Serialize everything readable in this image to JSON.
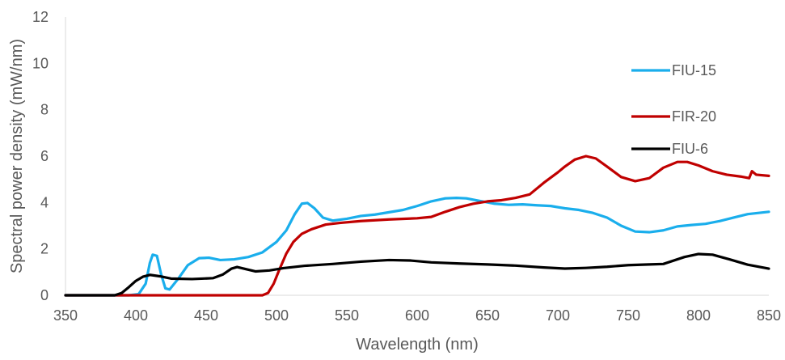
{
  "chart_data": {
    "type": "line",
    "title": "",
    "xlabel": "Wavelength (nm)",
    "ylabel": "Spectral power density (mW/nm)",
    "xlim": [
      350,
      850
    ],
    "ylim": [
      0,
      12
    ],
    "x_ticks": [
      "350",
      "400",
      "450",
      "500",
      "550",
      "600",
      "650",
      "700",
      "750",
      "800",
      "850"
    ],
    "y_ticks": [
      "0",
      "2",
      "4",
      "6",
      "8",
      "10",
      "12"
    ],
    "grid": false,
    "legend_position": "right",
    "series": [
      {
        "name": "FIU-15",
        "color": "#1aaeec",
        "points": [
          [
            350,
            0
          ],
          [
            395,
            0
          ],
          [
            402,
            0.05
          ],
          [
            407,
            0.5
          ],
          [
            410,
            1.4
          ],
          [
            412,
            1.75
          ],
          [
            415,
            1.7
          ],
          [
            418,
            0.9
          ],
          [
            421,
            0.3
          ],
          [
            424,
            0.25
          ],
          [
            430,
            0.7
          ],
          [
            437,
            1.3
          ],
          [
            445,
            1.6
          ],
          [
            452,
            1.62
          ],
          [
            460,
            1.52
          ],
          [
            470,
            1.55
          ],
          [
            480,
            1.65
          ],
          [
            490,
            1.85
          ],
          [
            500,
            2.3
          ],
          [
            507,
            2.8
          ],
          [
            513,
            3.5
          ],
          [
            518,
            3.95
          ],
          [
            522,
            3.98
          ],
          [
            527,
            3.75
          ],
          [
            533,
            3.35
          ],
          [
            540,
            3.22
          ],
          [
            550,
            3.3
          ],
          [
            560,
            3.42
          ],
          [
            570,
            3.48
          ],
          [
            580,
            3.58
          ],
          [
            590,
            3.68
          ],
          [
            600,
            3.85
          ],
          [
            610,
            4.05
          ],
          [
            620,
            4.18
          ],
          [
            628,
            4.2
          ],
          [
            635,
            4.18
          ],
          [
            645,
            4.06
          ],
          [
            655,
            3.95
          ],
          [
            665,
            3.9
          ],
          [
            675,
            3.92
          ],
          [
            685,
            3.88
          ],
          [
            695,
            3.85
          ],
          [
            705,
            3.75
          ],
          [
            715,
            3.68
          ],
          [
            725,
            3.55
          ],
          [
            735,
            3.35
          ],
          [
            745,
            3.0
          ],
          [
            755,
            2.75
          ],
          [
            765,
            2.72
          ],
          [
            775,
            2.8
          ],
          [
            785,
            2.97
          ],
          [
            795,
            3.03
          ],
          [
            805,
            3.08
          ],
          [
            815,
            3.2
          ],
          [
            825,
            3.35
          ],
          [
            835,
            3.5
          ],
          [
            850,
            3.6
          ]
        ]
      },
      {
        "name": "FIR-20",
        "color": "#c00000",
        "points": [
          [
            350,
            0
          ],
          [
            490,
            0
          ],
          [
            494,
            0.1
          ],
          [
            498,
            0.5
          ],
          [
            502,
            1.1
          ],
          [
            507,
            1.8
          ],
          [
            512,
            2.3
          ],
          [
            518,
            2.65
          ],
          [
            525,
            2.85
          ],
          [
            535,
            3.05
          ],
          [
            545,
            3.12
          ],
          [
            560,
            3.2
          ],
          [
            580,
            3.27
          ],
          [
            600,
            3.32
          ],
          [
            610,
            3.38
          ],
          [
            620,
            3.6
          ],
          [
            630,
            3.8
          ],
          [
            640,
            3.95
          ],
          [
            650,
            4.05
          ],
          [
            660,
            4.1
          ],
          [
            670,
            4.2
          ],
          [
            680,
            4.35
          ],
          [
            690,
            4.85
          ],
          [
            700,
            5.3
          ],
          [
            705,
            5.55
          ],
          [
            712,
            5.85
          ],
          [
            720,
            6.0
          ],
          [
            727,
            5.9
          ],
          [
            735,
            5.55
          ],
          [
            745,
            5.1
          ],
          [
            755,
            4.92
          ],
          [
            765,
            5.05
          ],
          [
            775,
            5.5
          ],
          [
            785,
            5.75
          ],
          [
            792,
            5.75
          ],
          [
            800,
            5.6
          ],
          [
            810,
            5.35
          ],
          [
            820,
            5.2
          ],
          [
            830,
            5.12
          ],
          [
            836,
            5.05
          ],
          [
            838,
            5.35
          ],
          [
            841,
            5.2
          ],
          [
            850,
            5.15
          ]
        ]
      },
      {
        "name": "FIU-6",
        "color": "#000000",
        "points": [
          [
            350,
            0
          ],
          [
            385,
            0
          ],
          [
            390,
            0.1
          ],
          [
            395,
            0.35
          ],
          [
            400,
            0.62
          ],
          [
            405,
            0.8
          ],
          [
            410,
            0.88
          ],
          [
            417,
            0.82
          ],
          [
            425,
            0.72
          ],
          [
            440,
            0.7
          ],
          [
            455,
            0.74
          ],
          [
            462,
            0.9
          ],
          [
            468,
            1.15
          ],
          [
            472,
            1.22
          ],
          [
            478,
            1.13
          ],
          [
            485,
            1.03
          ],
          [
            495,
            1.07
          ],
          [
            505,
            1.17
          ],
          [
            520,
            1.27
          ],
          [
            540,
            1.35
          ],
          [
            560,
            1.45
          ],
          [
            580,
            1.52
          ],
          [
            595,
            1.5
          ],
          [
            610,
            1.42
          ],
          [
            630,
            1.37
          ],
          [
            650,
            1.33
          ],
          [
            670,
            1.28
          ],
          [
            690,
            1.2
          ],
          [
            705,
            1.15
          ],
          [
            720,
            1.18
          ],
          [
            735,
            1.23
          ],
          [
            750,
            1.3
          ],
          [
            765,
            1.33
          ],
          [
            775,
            1.35
          ],
          [
            790,
            1.65
          ],
          [
            800,
            1.78
          ],
          [
            810,
            1.75
          ],
          [
            822,
            1.55
          ],
          [
            835,
            1.32
          ],
          [
            850,
            1.15
          ]
        ]
      }
    ]
  }
}
